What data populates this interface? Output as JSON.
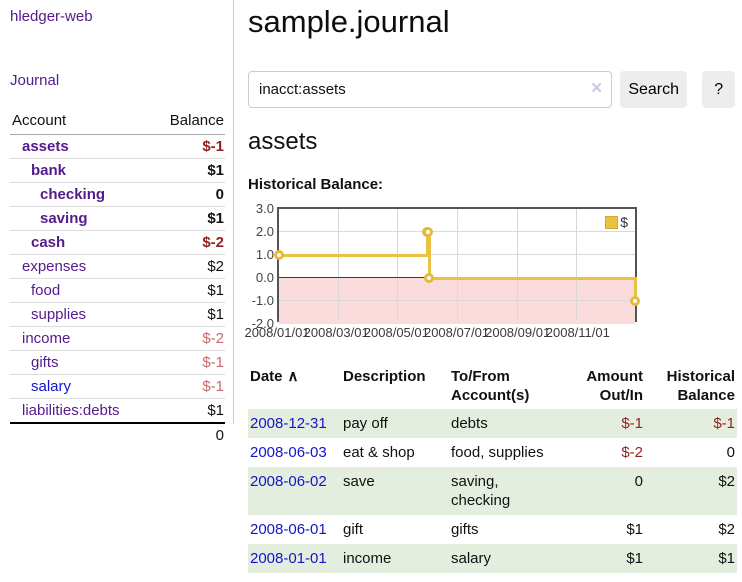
{
  "sidebar": {
    "app_title": "hledger-web",
    "nav": {
      "journal": "Journal"
    },
    "accounts_table": {
      "headers": {
        "account": "Account",
        "balance": "Balance"
      },
      "rows": [
        {
          "name": "assets",
          "indent": 0,
          "bold": true,
          "link_style": "visited",
          "balance": "$-1",
          "balance_style": "neg-strong"
        },
        {
          "name": "bank",
          "indent": 1,
          "bold": true,
          "link_style": "visited",
          "balance": "$1",
          "balance_style": "pos"
        },
        {
          "name": "checking",
          "indent": 2,
          "bold": true,
          "link_style": "visited",
          "balance": "0",
          "balance_style": "pos"
        },
        {
          "name": "saving",
          "indent": 2,
          "bold": true,
          "link_style": "visited",
          "balance": "$1",
          "balance_style": "pos"
        },
        {
          "name": "cash",
          "indent": 1,
          "bold": true,
          "link_style": "visited",
          "balance": "$-2",
          "balance_style": "neg-strong"
        },
        {
          "name": "expenses",
          "indent": 0,
          "bold": false,
          "link_style": "visited",
          "balance": "$2",
          "balance_style": "pos"
        },
        {
          "name": "food",
          "indent": 1,
          "bold": false,
          "link_style": "visited",
          "balance": "$1",
          "balance_style": "pos"
        },
        {
          "name": "supplies",
          "indent": 1,
          "bold": false,
          "link_style": "visited",
          "balance": "$1",
          "balance_style": "pos"
        },
        {
          "name": "income",
          "indent": 0,
          "bold": false,
          "link_style": "visited",
          "balance": "$-2",
          "balance_style": "neg-light"
        },
        {
          "name": "gifts",
          "indent": 1,
          "bold": false,
          "link_style": "visited",
          "balance": "$-1",
          "balance_style": "neg-light"
        },
        {
          "name": "salary",
          "indent": 1,
          "bold": false,
          "link_style": "unvisited",
          "balance": "$-1",
          "balance_style": "neg-light"
        },
        {
          "name": "liabilities:debts",
          "indent": 0,
          "bold": false,
          "link_style": "visited",
          "balance": "$1",
          "balance_style": "pos"
        }
      ],
      "total": "0"
    }
  },
  "main": {
    "title": "sample.journal",
    "search": {
      "value": "inacct:assets",
      "clear_icon": "✕",
      "search_button": "Search",
      "help_button": "?"
    },
    "account_heading": "assets",
    "chart_label": "Historical Balance:"
  },
  "chart_data": {
    "type": "line",
    "title": "Historical Balance:",
    "step": true,
    "x_unit": "days since 2008-01-01",
    "xlim": [
      0,
      365
    ],
    "ylim": [
      -2,
      3
    ],
    "series": [
      {
        "name": "$",
        "points": [
          {
            "date": "2008-01-01",
            "x": 0,
            "y": 1
          },
          {
            "date": "2008-06-01",
            "x": 152,
            "y": 2
          },
          {
            "date": "2008-06-02",
            "x": 153,
            "y": 2
          },
          {
            "date": "2008-06-03",
            "x": 154,
            "y": 0
          },
          {
            "date": "2008-12-31",
            "x": 365,
            "y": -1
          }
        ]
      }
    ],
    "x_ticks": [
      {
        "x": 0,
        "label": "2008/01/01"
      },
      {
        "x": 60,
        "label": "2008/03/01"
      },
      {
        "x": 121,
        "label": "2008/05/01"
      },
      {
        "x": 182,
        "label": "2008/07/01"
      },
      {
        "x": 244,
        "label": "2008/09/01"
      },
      {
        "x": 305,
        "label": "2008/11/01"
      }
    ],
    "y_ticks": [
      {
        "y": 3,
        "label": "3.0"
      },
      {
        "y": 2,
        "label": "2.0"
      },
      {
        "y": 1,
        "label": "1.0"
      },
      {
        "y": 0,
        "label": "0.0"
      },
      {
        "y": -1,
        "label": "-1.0"
      },
      {
        "y": -2,
        "label": "-2.0"
      }
    ],
    "legend": {
      "label": "$",
      "position": "top-right"
    },
    "grid": true,
    "line_color": "#e8c240",
    "negative_region_fill": "#fbdcdc",
    "zero_line_color": "#8e1414"
  },
  "register": {
    "headers": {
      "date": "Date",
      "sort_indicator": "∧",
      "description": "Description",
      "accounts": "To/From Account(s)",
      "amount": "Amount Out/In",
      "balance": "Historical Balance"
    },
    "rows": [
      {
        "date": "2008-12-31",
        "description": "pay off",
        "accounts": "debts",
        "amount": "$-1",
        "amount_negative": true,
        "balance": "$-1",
        "balance_negative": true
      },
      {
        "date": "2008-06-03",
        "description": "eat & shop",
        "accounts": "food, supplies",
        "amount": "$-2",
        "amount_negative": true,
        "balance": "0",
        "balance_negative": false
      },
      {
        "date": "2008-06-02",
        "description": "save",
        "accounts": "saving, checking",
        "amount": "0",
        "amount_negative": false,
        "balance": "$2",
        "balance_negative": false
      },
      {
        "date": "2008-06-01",
        "description": "gift",
        "accounts": "gifts",
        "amount": "$1",
        "amount_negative": false,
        "balance": "$2",
        "balance_negative": false
      },
      {
        "date": "2008-01-01",
        "description": "income",
        "accounts": "salary",
        "amount": "$1",
        "amount_negative": false,
        "balance": "$1",
        "balance_negative": false
      }
    ]
  },
  "colors": {
    "link_visited_purple": "#551a8b",
    "link_blue": "#1414cc",
    "negative_strong_red": "#941f1f",
    "negative_light_red": "#c66a6a",
    "row_stripe_green": "#e3eede",
    "button_gray": "#ededed",
    "chart_line_gold": "#e8c240",
    "chart_border_gray": "#545454"
  }
}
